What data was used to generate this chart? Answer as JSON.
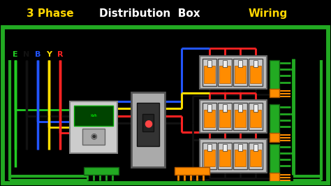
{
  "figsize": [
    4.74,
    2.66
  ],
  "dpi": 100,
  "title_bg": "#000000",
  "diagram_bg": "#1a1a1a",
  "border_color": "#22AA22",
  "wire_colors": {
    "earth": "#22CC22",
    "neutral": "#111111",
    "blue": "#2255FF",
    "yellow": "#FFDD00",
    "red": "#FF2222"
  },
  "label_text": [
    "E",
    "N",
    "B",
    "Y",
    "R"
  ],
  "label_colors": [
    "#22CC22",
    "#111111",
    "#2255FF",
    "#FFDD00",
    "#FF2222"
  ],
  "title_yellow": "#FFD700",
  "title_white": "#FFFFFF",
  "orange": "#FF8C00",
  "meter_bg": "#CCCCCC",
  "mccb_bg": "#999999",
  "mcb_bg": "#BBBBBB"
}
